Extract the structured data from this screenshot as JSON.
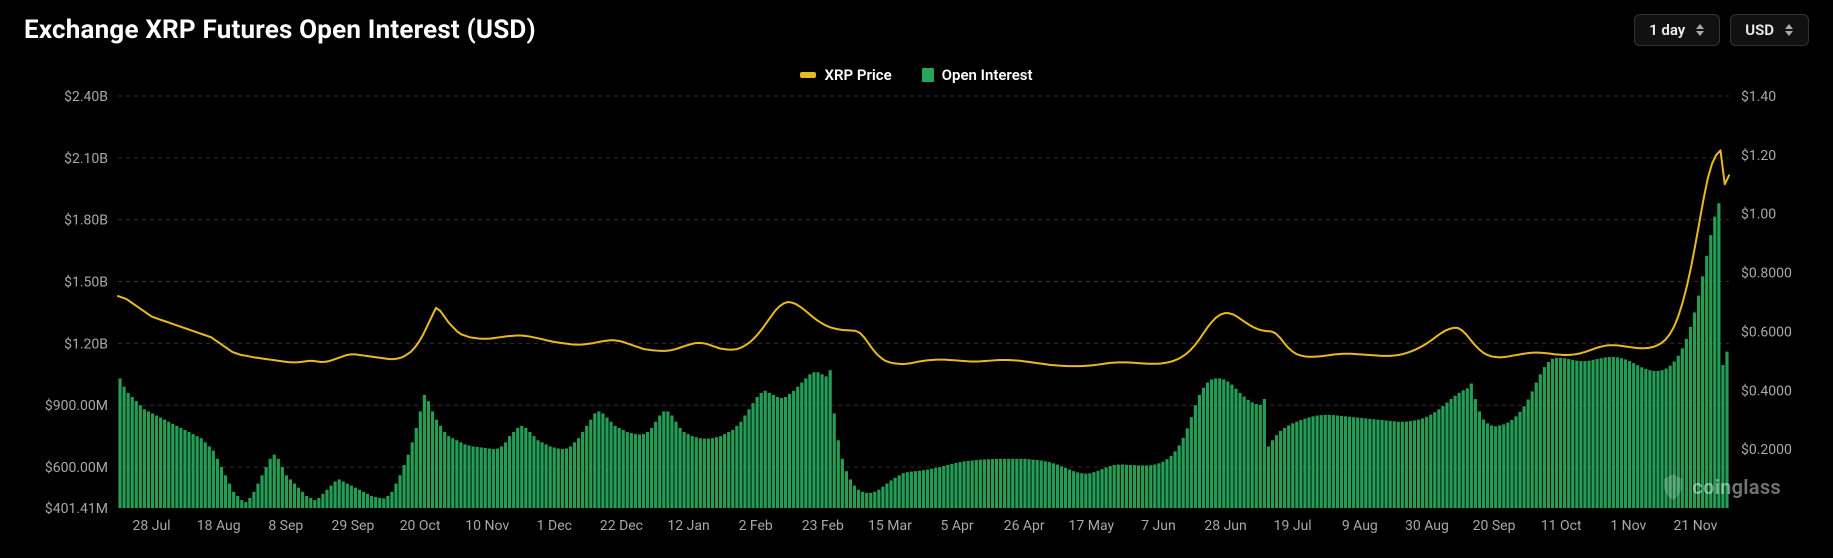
{
  "header": {
    "title": "Exchange XRP Futures Open Interest (USD)",
    "timeframe_label": "1 day",
    "currency_label": "USD"
  },
  "legend": {
    "price_label": "XRP Price",
    "oi_label": "Open Interest",
    "price_color": "#e8b923",
    "oi_color": "#26a65b"
  },
  "watermark": {
    "text": "coinglass"
  },
  "chart": {
    "type": "bar+line",
    "background_color": "#000000",
    "grid_color": "#2e2e2e",
    "left_axis": {
      "label_color": "#a8a8a8",
      "ticks": [
        {
          "v": 401.41,
          "label": "$401.41M"
        },
        {
          "v": 600,
          "label": "$600.00M"
        },
        {
          "v": 900,
          "label": "$900.00M"
        },
        {
          "v": 1200,
          "label": "$1.20B"
        },
        {
          "v": 1500,
          "label": "$1.50B"
        },
        {
          "v": 1800,
          "label": "$1.80B"
        },
        {
          "v": 2100,
          "label": "$2.10B"
        },
        {
          "v": 2400,
          "label": "$2.40B"
        }
      ],
      "min": 401.41,
      "max": 2400
    },
    "right_axis": {
      "label_color": "#a8a8a8",
      "ticks": [
        {
          "v": 0.2,
          "label": "$0.2000"
        },
        {
          "v": 0.4,
          "label": "$0.4000"
        },
        {
          "v": 0.6,
          "label": "$0.6000"
        },
        {
          "v": 0.8,
          "label": "$0.8000"
        },
        {
          "v": 1.0,
          "label": "$1.00"
        },
        {
          "v": 1.2,
          "label": "$1.20"
        },
        {
          "v": 1.4,
          "label": "$1.40"
        }
      ],
      "min": 0.0,
      "max": 1.4
    },
    "x_ticks": [
      "28 Jul",
      "18 Aug",
      "8 Sep",
      "29 Sep",
      "20 Oct",
      "10 Nov",
      "1 Dec",
      "22 Dec",
      "12 Jan",
      "2 Feb",
      "23 Feb",
      "15 Mar",
      "5 Apr",
      "26 Apr",
      "17 May",
      "7 Jun",
      "28 Jun",
      "19 Jul",
      "9 Aug",
      "30 Aug",
      "20 Sep",
      "11 Oct",
      "1 Nov",
      "21 Nov"
    ],
    "bar_color": "#26a65b",
    "bar_opacity": 0.95,
    "line_color": "#e8b923",
    "line_width": 2,
    "open_interest": [
      1030,
      990,
      960,
      940,
      920,
      900,
      880,
      870,
      860,
      850,
      840,
      830,
      820,
      810,
      800,
      790,
      780,
      770,
      760,
      750,
      740,
      720,
      700,
      680,
      640,
      600,
      560,
      520,
      480,
      460,
      440,
      430,
      450,
      480,
      520,
      560,
      600,
      640,
      660,
      640,
      600,
      560,
      540,
      520,
      500,
      480,
      460,
      450,
      440,
      450,
      470,
      490,
      510,
      530,
      540,
      530,
      520,
      510,
      500,
      490,
      480,
      470,
      460,
      455,
      450,
      448,
      460,
      480,
      520,
      560,
      610,
      660,
      720,
      790,
      870,
      950,
      920,
      870,
      830,
      800,
      770,
      750,
      740,
      730,
      720,
      710,
      705,
      700,
      698,
      695,
      693,
      690,
      688,
      690,
      700,
      720,
      750,
      770,
      790,
      800,
      790,
      770,
      750,
      730,
      720,
      710,
      700,
      695,
      690,
      688,
      690,
      700,
      720,
      740,
      770,
      800,
      830,
      860,
      870,
      860,
      840,
      820,
      800,
      790,
      780,
      770,
      765,
      760,
      758,
      760,
      770,
      790,
      820,
      850,
      870,
      870,
      850,
      820,
      790,
      770,
      760,
      750,
      745,
      740,
      738,
      738,
      740,
      745,
      750,
      760,
      770,
      780,
      800,
      820,
      850,
      880,
      910,
      940,
      960,
      970,
      960,
      950,
      940,
      935,
      940,
      955,
      970,
      990,
      1010,
      1030,
      1050,
      1060,
      1060,
      1050,
      1040,
      1070,
      860,
      730,
      640,
      580,
      540,
      510,
      490,
      480,
      475,
      475,
      480,
      490,
      505,
      520,
      535,
      548,
      560,
      570,
      575,
      578,
      580,
      582,
      585,
      588,
      592,
      596,
      600,
      605,
      610,
      615,
      620,
      624,
      628,
      630,
      632,
      634,
      636,
      637,
      638,
      639,
      640,
      640,
      640,
      640,
      640,
      640,
      640,
      640,
      638,
      636,
      634,
      632,
      628,
      624,
      618,
      612,
      604,
      596,
      588,
      580,
      574,
      570,
      568,
      570,
      575,
      582,
      590,
      598,
      605,
      610,
      612,
      612,
      611,
      610,
      609,
      608,
      608,
      608,
      609,
      612,
      618,
      626,
      638,
      654,
      676,
      705,
      742,
      788,
      842,
      900,
      950,
      985,
      1010,
      1025,
      1030,
      1030,
      1025,
      1015,
      1000,
      980,
      960,
      942,
      926,
      914,
      906,
      902,
      930,
      700,
      730,
      755,
      775,
      790,
      802,
      812,
      820,
      828,
      835,
      841,
      846,
      850,
      852,
      853,
      853,
      852,
      850,
      848,
      846,
      844,
      842,
      840,
      838,
      836,
      834,
      832,
      830,
      828,
      826,
      824,
      822,
      820,
      820,
      821,
      823,
      826,
      830,
      836,
      844,
      854,
      866,
      880,
      896,
      913,
      930,
      946,
      960,
      972,
      982,
      1005,
      930,
      870,
      831,
      812,
      802,
      798,
      802,
      807,
      816,
      829,
      846,
      868,
      895,
      928,
      967,
      1010,
      1050,
      1085,
      1110,
      1125,
      1130,
      1130,
      1128,
      1124,
      1120,
      1116,
      1114,
      1114,
      1116,
      1120,
      1124,
      1128,
      1132,
      1134,
      1134,
      1132,
      1128,
      1122,
      1114,
      1104,
      1094,
      1084,
      1076,
      1070,
      1066,
      1066,
      1070,
      1078,
      1092,
      1112,
      1140,
      1176,
      1222,
      1280,
      1350,
      1432,
      1525,
      1625,
      1725,
      1815,
      1880,
      1095,
      1160
    ],
    "price": [
      0.72,
      0.715,
      0.71,
      0.7,
      0.69,
      0.68,
      0.67,
      0.66,
      0.65,
      0.645,
      0.64,
      0.635,
      0.63,
      0.625,
      0.62,
      0.615,
      0.61,
      0.605,
      0.6,
      0.595,
      0.59,
      0.585,
      0.58,
      0.57,
      0.56,
      0.55,
      0.54,
      0.53,
      0.525,
      0.52,
      0.518,
      0.515,
      0.512,
      0.51,
      0.508,
      0.506,
      0.504,
      0.502,
      0.5,
      0.498,
      0.496,
      0.495,
      0.495,
      0.496,
      0.498,
      0.5,
      0.5,
      0.498,
      0.496,
      0.497,
      0.5,
      0.505,
      0.51,
      0.515,
      0.52,
      0.522,
      0.522,
      0.52,
      0.518,
      0.516,
      0.514,
      0.512,
      0.51,
      0.508,
      0.506,
      0.506,
      0.508,
      0.512,
      0.52,
      0.53,
      0.545,
      0.565,
      0.59,
      0.62,
      0.65,
      0.68,
      0.67,
      0.65,
      0.63,
      0.615,
      0.6,
      0.59,
      0.585,
      0.58,
      0.578,
      0.576,
      0.575,
      0.575,
      0.576,
      0.578,
      0.58,
      0.582,
      0.584,
      0.585,
      0.586,
      0.586,
      0.585,
      0.583,
      0.58,
      0.577,
      0.574,
      0.57,
      0.567,
      0.564,
      0.562,
      0.56,
      0.558,
      0.556,
      0.555,
      0.555,
      0.556,
      0.558,
      0.56,
      0.563,
      0.566,
      0.568,
      0.57,
      0.57,
      0.568,
      0.565,
      0.56,
      0.555,
      0.55,
      0.545,
      0.54,
      0.538,
      0.536,
      0.535,
      0.534,
      0.534,
      0.535,
      0.538,
      0.542,
      0.547,
      0.552,
      0.556,
      0.56,
      0.561,
      0.56,
      0.557,
      0.552,
      0.547,
      0.542,
      0.54,
      0.538,
      0.538,
      0.54,
      0.545,
      0.553,
      0.563,
      0.576,
      0.592,
      0.61,
      0.63,
      0.65,
      0.67,
      0.685,
      0.695,
      0.7,
      0.698,
      0.692,
      0.683,
      0.672,
      0.66,
      0.648,
      0.637,
      0.628,
      0.62,
      0.614,
      0.61,
      0.607,
      0.605,
      0.604,
      0.603,
      0.602,
      0.595,
      0.58,
      0.56,
      0.54,
      0.523,
      0.51,
      0.5,
      0.495,
      0.492,
      0.49,
      0.489,
      0.49,
      0.492,
      0.495,
      0.498,
      0.5,
      0.502,
      0.503,
      0.504,
      0.504,
      0.504,
      0.503,
      0.502,
      0.501,
      0.5,
      0.499,
      0.498,
      0.498,
      0.498,
      0.499,
      0.5,
      0.501,
      0.502,
      0.503,
      0.503,
      0.503,
      0.502,
      0.501,
      0.5,
      0.498,
      0.496,
      0.494,
      0.492,
      0.49,
      0.488,
      0.486,
      0.485,
      0.484,
      0.483,
      0.482,
      0.482,
      0.482,
      0.482,
      0.483,
      0.484,
      0.485,
      0.487,
      0.489,
      0.491,
      0.493,
      0.494,
      0.495,
      0.495,
      0.495,
      0.494,
      0.493,
      0.492,
      0.491,
      0.49,
      0.49,
      0.49,
      0.491,
      0.493,
      0.496,
      0.5,
      0.506,
      0.514,
      0.524,
      0.537,
      0.553,
      0.572,
      0.593,
      0.614,
      0.632,
      0.647,
      0.657,
      0.662,
      0.662,
      0.658,
      0.65,
      0.64,
      0.63,
      0.621,
      0.613,
      0.607,
      0.603,
      0.601,
      0.6,
      0.594,
      0.58,
      0.562,
      0.545,
      0.532,
      0.523,
      0.518,
      0.515,
      0.514,
      0.514,
      0.515,
      0.516,
      0.518,
      0.52,
      0.522,
      0.523,
      0.524,
      0.524,
      0.524,
      0.523,
      0.522,
      0.521,
      0.52,
      0.519,
      0.518,
      0.517,
      0.517,
      0.517,
      0.518,
      0.52,
      0.523,
      0.527,
      0.532,
      0.538,
      0.545,
      0.553,
      0.562,
      0.572,
      0.583,
      0.593,
      0.602,
      0.608,
      0.612,
      0.612,
      0.604,
      0.59,
      0.572,
      0.555,
      0.54,
      0.528,
      0.52,
      0.515,
      0.513,
      0.512,
      0.513,
      0.515,
      0.518,
      0.52,
      0.523,
      0.525,
      0.527,
      0.528,
      0.528,
      0.527,
      0.526,
      0.524,
      0.522,
      0.521,
      0.52,
      0.52,
      0.521,
      0.523,
      0.526,
      0.53,
      0.535,
      0.54,
      0.545,
      0.549,
      0.552,
      0.553,
      0.553,
      0.552,
      0.55,
      0.548,
      0.546,
      0.544,
      0.543,
      0.543,
      0.544,
      0.547,
      0.552,
      0.56,
      0.572,
      0.59,
      0.615,
      0.65,
      0.695,
      0.75,
      0.815,
      0.89,
      0.97,
      1.05,
      1.12,
      1.17,
      1.2,
      1.215,
      1.1,
      1.13
    ]
  }
}
